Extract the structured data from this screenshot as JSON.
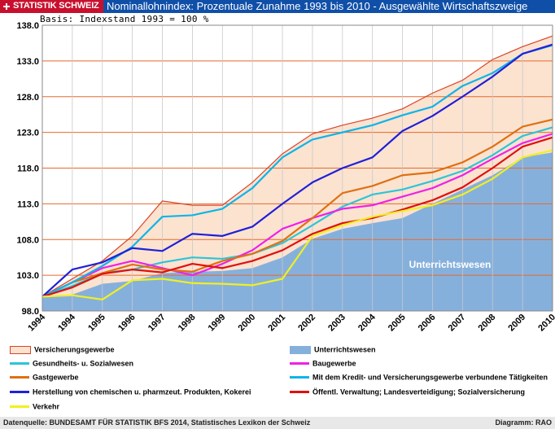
{
  "header": {
    "brand": "STATISTIK SCHWEIZ",
    "title": "Nominallohnindex: Prozentuale Zunahme 1993 bis 2010 - Ausgewählte Wirtschaftszweige"
  },
  "basis": "Basis: Indexstand 1993 = 100 %",
  "footer": {
    "source": "Datenquelle: BUNDESAMT FÜR STATISTIK BFS 2014, Statistisches Lexikon der Schweiz",
    "diagram": "Diagramm: RAO"
  },
  "colors": {
    "header_bg": "#0f4fa8",
    "brand_bg": "#c8102e",
    "grid": "#e8692a",
    "plot_bg": "#ffffff"
  },
  "chart_data": {
    "type": "line",
    "title": "Nominallohnindex: Prozentuale Zunahme 1993 bis 2010 - Ausgewählte Wirtschaftszweige",
    "x_ticks": [
      "1994",
      "1994",
      "1995",
      "1996",
      "1997",
      "1998",
      "1999",
      "2000",
      "2001",
      "2002",
      "2003",
      "2004",
      "2005",
      "2006",
      "2007",
      "2008",
      "2009",
      "2010"
    ],
    "y_ticks": [
      "98.0",
      "103.0",
      "108.0",
      "113.0",
      "118.0",
      "123.0",
      "128.0",
      "133.0",
      "138.0"
    ],
    "ylim": [
      98,
      138
    ],
    "grid": true,
    "annotation": "Unterrichtswesen",
    "series": [
      {
        "name": "Versicherungsgewerbe",
        "style": "band",
        "color": "#d8442a",
        "fill": "#fbe3d0",
        "values": [
          100,
          102.5,
          105.0,
          108.5,
          113.4,
          112.8,
          112.8,
          116.0,
          120.0,
          122.8,
          124.0,
          125.0,
          126.3,
          128.5,
          130.3,
          133.2,
          135.0,
          136.5
        ]
      },
      {
        "name": "Unterrichtswesen",
        "style": "area",
        "color": "#86b0dc",
        "fill": "#86b0dc",
        "values": [
          100,
          100.3,
          101.8,
          102.2,
          103.3,
          103.5,
          103.6,
          104.0,
          105.5,
          108.1,
          109.5,
          110.3,
          111.0,
          113.0,
          115.0,
          117.0,
          119.5,
          120.2
        ]
      },
      {
        "name": "Gesundheits- u. Sozialwesen",
        "style": "line",
        "color": "#2ec4d8",
        "values": [
          100,
          101.5,
          103.3,
          103.8,
          104.8,
          105.5,
          105.3,
          106.0,
          107.5,
          110.0,
          112.6,
          114.3,
          115.0,
          116.2,
          117.6,
          119.8,
          122.5,
          123.7
        ]
      },
      {
        "name": "Baugewerbe",
        "style": "line",
        "color": "#f020e8",
        "values": [
          100,
          102.0,
          104.0,
          105.0,
          104.0,
          103.0,
          104.6,
          106.5,
          109.5,
          111.0,
          112.3,
          112.8,
          114.0,
          115.2,
          117.0,
          119.3,
          121.5,
          122.8
        ]
      },
      {
        "name": "Gastgewerbe",
        "style": "line",
        "color": "#e07010",
        "values": [
          100,
          102.0,
          103.3,
          104.5,
          103.8,
          103.5,
          105.0,
          106.0,
          107.8,
          111.0,
          114.5,
          115.5,
          117.0,
          117.4,
          118.8,
          121.0,
          123.8,
          124.8
        ]
      },
      {
        "name": "Mit dem Kredit- und Versicherungsgewerbe verbundene Tätigkeiten",
        "style": "line",
        "color": "#10b4e8",
        "values": [
          100,
          102.0,
          104.3,
          107.0,
          111.2,
          111.4,
          112.3,
          115.2,
          119.5,
          122.0,
          123.0,
          124.0,
          125.4,
          126.6,
          129.5,
          131.3,
          134.0,
          135.2
        ]
      },
      {
        "name": "Herstellung von chemischen u. pharmzeut. Produkten, Kokerei",
        "style": "line",
        "color": "#2020d8",
        "values": [
          100,
          103.8,
          104.8,
          106.8,
          106.4,
          108.8,
          108.5,
          109.8,
          113.0,
          116.0,
          118.0,
          119.5,
          123.2,
          125.3,
          128.0,
          130.8,
          134.0,
          135.3
        ]
      },
      {
        "name": "Öffentl. Verwaltung; Landesverteidigung; Sozialversicherung",
        "style": "line",
        "color": "#e01010",
        "values": [
          100,
          101.3,
          103.2,
          103.8,
          103.4,
          104.6,
          104.0,
          105.0,
          106.5,
          108.8,
          110.3,
          111.0,
          112.2,
          113.5,
          115.3,
          118.0,
          121.0,
          122.3
        ]
      },
      {
        "name": "Verkehr",
        "style": "line",
        "color": "#f0f020",
        "values": [
          100,
          100.2,
          99.6,
          102.3,
          102.5,
          101.9,
          101.8,
          101.6,
          102.5,
          108.5,
          110.0,
          111.2,
          112.0,
          112.8,
          114.3,
          116.5,
          119.5,
          120.5
        ]
      }
    ]
  }
}
